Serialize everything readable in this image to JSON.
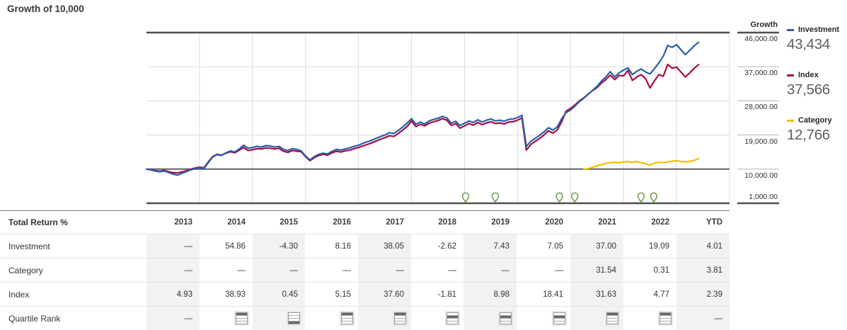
{
  "colors": {
    "investment_blue": "#2A5DA9",
    "index_maroon": "#A50D44",
    "category_yellow": "#F5BE00",
    "marker_green": "#61923E",
    "grid_light": "#dcdcdc",
    "frame_dark": "#4f4f4f",
    "baseline_dark": "#5f5f5f",
    "shaded_column": "#f2f2f2"
  },
  "chart_data": {
    "type": "line",
    "title": "Growth of 10,000",
    "x_range": [
      2013,
      2024
    ],
    "grid": true,
    "legend_position": "right",
    "y_axis": {
      "title": "Growth",
      "ticks": [
        {
          "value": 46000,
          "label": "46,000.00",
          "dark": true
        },
        {
          "value": 37000,
          "label": "37,000.00",
          "dark": false
        },
        {
          "value": 28000,
          "label": "28,000.00",
          "dark": false
        },
        {
          "value": 19000,
          "label": "19,000.00",
          "dark": false
        },
        {
          "value": 10000,
          "label": "10,000.00",
          "dark": false
        },
        {
          "value": 1000,
          "label": "1,000.00",
          "dark": true
        }
      ]
    },
    "series": [
      {
        "name": "Category",
        "color": "#F5BE00",
        "final_label": "12,766",
        "start": 2021.25,
        "values": [
          10000,
          10150,
          10500,
          10900,
          11200,
          11500,
          11700,
          11800,
          11700,
          11900,
          12000,
          11800,
          12000,
          11700,
          11400,
          11000,
          11600,
          11800,
          11700,
          11900,
          12100,
          12200,
          12000,
          11900,
          12000,
          12300,
          12766
        ]
      },
      {
        "name": "Index",
        "color": "#A50D44",
        "final_label": "37,566",
        "start": 2013,
        "values": [
          10000,
          9850,
          9600,
          9450,
          9650,
          9350,
          9050,
          9000,
          9250,
          9550,
          9950,
          10300,
          10500,
          10350,
          11900,
          13300,
          13900,
          13700,
          14200,
          14600,
          14300,
          15000,
          15700,
          14900,
          15100,
          15400,
          15300,
          15600,
          15500,
          15300,
          15500,
          14700,
          14400,
          14900,
          14700,
          14600,
          13300,
          12200,
          13000,
          13600,
          13900,
          13700,
          14300,
          14700,
          14500,
          14800,
          15000,
          15400,
          15700,
          16100,
          16500,
          16900,
          17400,
          17900,
          18300,
          18800,
          18600,
          19400,
          20300,
          21200,
          22700,
          21200,
          21800,
          21400,
          22100,
          22500,
          22800,
          23300,
          22900,
          21500,
          22000,
          20800,
          21400,
          22000,
          21600,
          22300,
          21700,
          22200,
          22500,
          22000,
          22200,
          21900,
          22400,
          22500,
          22900,
          23500,
          15000,
          16500,
          17300,
          18100,
          19000,
          20100,
          19500,
          20300,
          22500,
          25300,
          26000,
          26900,
          28000,
          28800,
          29800,
          30700,
          31500,
          32700,
          33600,
          34800,
          33600,
          34700,
          34600,
          36000,
          33400,
          34300,
          34900,
          33800,
          31400,
          33300,
          34900,
          34500,
          37600,
          36600,
          36900,
          35600,
          34300,
          35400,
          36600,
          37566
        ]
      },
      {
        "name": "Investment",
        "color": "#2A5DA9",
        "final_label": "43,434",
        "start": 2013,
        "values": [
          10000,
          9800,
          9500,
          9300,
          9500,
          9100,
          8700,
          8400,
          8900,
          9300,
          9800,
          10100,
          10300,
          10150,
          11700,
          13200,
          13800,
          13600,
          14300,
          14800,
          14500,
          15300,
          16300,
          15500,
          15700,
          16000,
          15800,
          16200,
          16100,
          15800,
          16000,
          15200,
          14900,
          15400,
          15200,
          14800,
          13500,
          12400,
          13300,
          13900,
          14200,
          14000,
          14700,
          15200,
          15000,
          15300,
          15600,
          16000,
          16300,
          16800,
          17200,
          17600,
          18100,
          18600,
          19000,
          19600,
          19400,
          20200,
          21100,
          22100,
          23300,
          21800,
          22400,
          21900,
          22700,
          23100,
          23400,
          23900,
          23500,
          22100,
          22600,
          21500,
          22100,
          22700,
          22300,
          23000,
          22400,
          22900,
          23200,
          22700,
          22900,
          22600,
          23100,
          23200,
          23600,
          24200,
          16000,
          17300,
          18100,
          18900,
          19800,
          20900,
          20300,
          21100,
          23300,
          24900,
          25600,
          26600,
          27800,
          28700,
          29700,
          30800,
          31800,
          33200,
          34300,
          35700,
          34300,
          35400,
          36100,
          36700,
          34900,
          35800,
          36400,
          35600,
          35100,
          36500,
          38000,
          39800,
          42600,
          42100,
          42800,
          41500,
          40200,
          41300,
          42500,
          43434
        ]
      }
    ],
    "legend": [
      {
        "name": "Investment",
        "value": "43,434"
      },
      {
        "name": "Index",
        "value": "37,566"
      },
      {
        "name": "Category",
        "value": "12,766"
      }
    ],
    "event_markers": {
      "color": "#61923E",
      "positions": [
        2019.02,
        2019.58,
        2020.79,
        2021.08,
        2022.33,
        2022.57
      ]
    }
  },
  "table": {
    "title": "Total Return %",
    "years": [
      "2013",
      "2014",
      "2015",
      "2016",
      "2017",
      "2018",
      "2019",
      "2020",
      "2021",
      "2022",
      "YTD"
    ],
    "shaded_columns": [
      0,
      2,
      4,
      6,
      8,
      10
    ],
    "empty_cell": "—",
    "rows": [
      {
        "label": "Investment",
        "type": "number",
        "values": [
          "—",
          "54.86",
          "-4.30",
          "8.16",
          "38.05",
          "-2.62",
          "7.43",
          "7.05",
          "37.00",
          "19.09",
          "4.01"
        ]
      },
      {
        "label": "Category",
        "type": "number",
        "values": [
          "—",
          "—",
          "—",
          "—",
          "—",
          "—",
          "—",
          "—",
          "31.54",
          "0.31",
          "3.81"
        ]
      },
      {
        "label": "Index",
        "type": "number",
        "values": [
          "4.93",
          "38.93",
          "0.45",
          "5.15",
          "37.60",
          "-1.81",
          "8.98",
          "18.41",
          "31.63",
          "4.77",
          "2.39"
        ]
      },
      {
        "label": "Quartile Rank",
        "type": "quartile",
        "values": [
          null,
          1,
          4,
          1,
          1,
          2,
          2,
          2,
          1,
          1,
          null
        ]
      }
    ]
  }
}
